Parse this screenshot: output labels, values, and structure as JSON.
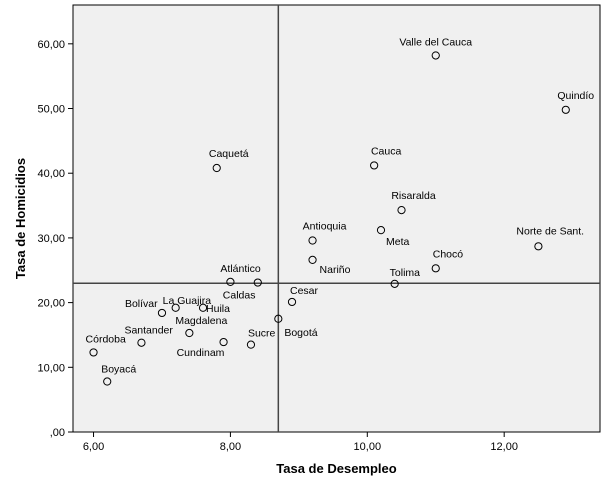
{
  "chart_data": {
    "type": "scatter",
    "xlabel": "Tasa de Desempleo",
    "ylabel": "Tasa de Homicidios",
    "xlim": [
      5.7,
      13.4
    ],
    "ylim": [
      0,
      66
    ],
    "x_ticks": [
      6,
      8,
      10,
      12
    ],
    "x_tick_labels": [
      "6,00",
      "8,00",
      "10,00",
      "12,00"
    ],
    "y_ticks": [
      0,
      10,
      20,
      30,
      40,
      50,
      60
    ],
    "y_tick_labels": [
      ",00",
      "10,00",
      "20,00",
      "30,00",
      "40,00",
      "50,00",
      "60,00"
    ],
    "reference_lines": {
      "x": 8.7,
      "y": 23.0
    },
    "background": "#f0f0f0",
    "grid": false,
    "points": [
      {
        "label": "Valle del Cauca",
        "x": 11.0,
        "y": 58.2
      },
      {
        "label": "Quindío",
        "x": 12.9,
        "y": 49.8
      },
      {
        "label": "Caquetá",
        "x": 7.8,
        "y": 40.8
      },
      {
        "label": "Cauca",
        "x": 10.1,
        "y": 41.2
      },
      {
        "label": "Risaralda",
        "x": 10.5,
        "y": 34.3
      },
      {
        "label": "Antioquia",
        "x": 9.2,
        "y": 29.6
      },
      {
        "label": "Meta",
        "x": 10.2,
        "y": 31.2
      },
      {
        "label": "Norte de Sant.",
        "x": 12.5,
        "y": 28.7
      },
      {
        "label": "Chocó",
        "x": 11.0,
        "y": 25.3
      },
      {
        "label": "Nariño",
        "x": 9.2,
        "y": 26.6
      },
      {
        "label": "Tolima",
        "x": 10.4,
        "y": 22.9
      },
      {
        "label": "Atlántico",
        "x": 8.0,
        "y": 23.2
      },
      {
        "label": "Caldas",
        "x": 8.4,
        "y": 23.1
      },
      {
        "label": "La Guajira",
        "x": 7.2,
        "y": 19.2
      },
      {
        "label": "Huila",
        "x": 7.6,
        "y": 19.2
      },
      {
        "label": "Bolívar",
        "x": 7.0,
        "y": 18.4
      },
      {
        "label": "Cesar",
        "x": 8.9,
        "y": 20.1
      },
      {
        "label": "Bogotá",
        "x": 8.7,
        "y": 17.5
      },
      {
        "label": "Magdalena",
        "x": 7.4,
        "y": 15.3
      },
      {
        "label": "Sucre",
        "x": 8.3,
        "y": 13.5
      },
      {
        "label": "Cundinam",
        "x": 7.9,
        "y": 13.9
      },
      {
        "label": "Santander",
        "x": 6.7,
        "y": 13.8
      },
      {
        "label": "Córdoba",
        "x": 6.0,
        "y": 12.3
      },
      {
        "label": "Boyacá",
        "x": 6.2,
        "y": 7.8
      }
    ]
  }
}
